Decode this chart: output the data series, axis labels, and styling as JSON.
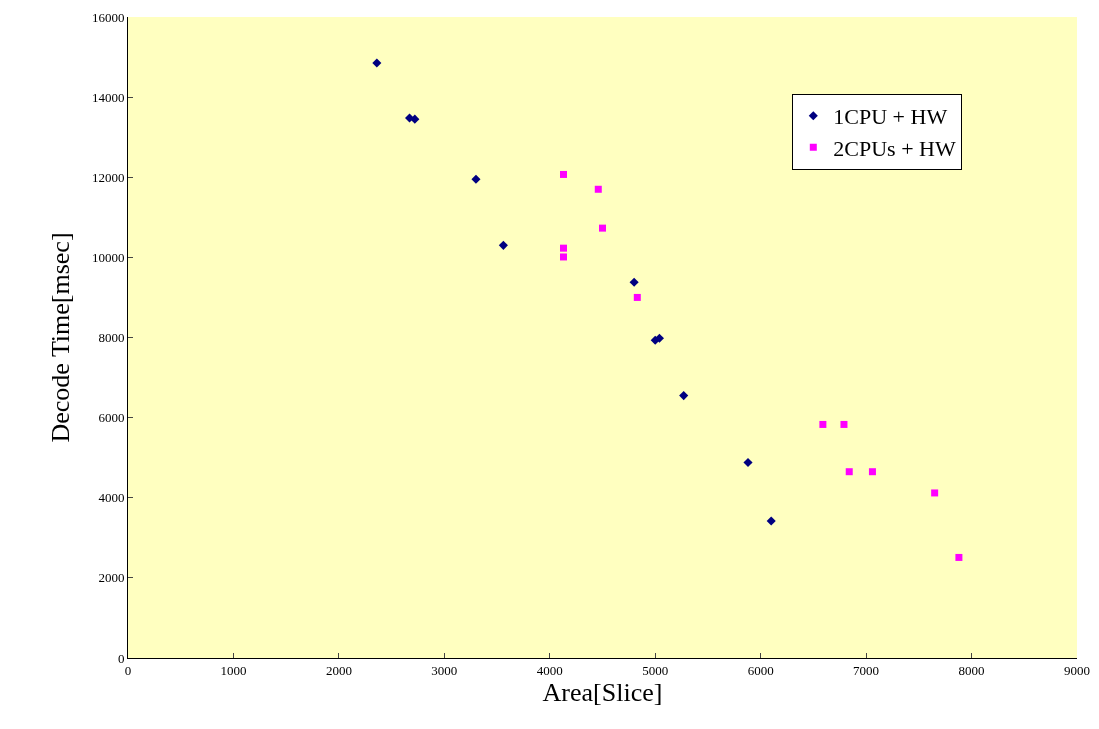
{
  "chart_data": {
    "type": "scatter",
    "xlabel": "Area[Slice]",
    "ylabel": "Decode Time[msec]",
    "xlim": [
      0,
      9000
    ],
    "xticks": [
      0,
      1000,
      2000,
      3000,
      4000,
      5000,
      6000,
      7000,
      8000,
      9000
    ],
    "ylim": [
      0,
      16000
    ],
    "yticks": [
      0,
      2000,
      4000,
      6000,
      8000,
      10000,
      12000,
      14000,
      16000
    ],
    "grid": false,
    "legend": "top right",
    "series": [
      {
        "name": "1CPU + HW",
        "color": "#000080",
        "marker": "diamond",
        "x": [
          2360,
          2670,
          2720,
          3300,
          3560,
          4800,
          5000,
          5040,
          5270,
          5880,
          6100
        ],
        "values": [
          14850,
          13480,
          13450,
          11950,
          10300,
          9380,
          7930,
          7980,
          6550,
          4880,
          3420
        ]
      },
      {
        "name": "2CPUs + HW",
        "color": "#ff00ff",
        "marker": "square",
        "x": [
          4130,
          4130,
          4130,
          4460,
          4500,
          4830,
          6590,
          6790,
          6840,
          7060,
          7650,
          7880
        ],
        "values": [
          12070,
          10230,
          10010,
          11700,
          10730,
          9000,
          5830,
          5830,
          4650,
          4650,
          4120,
          2510
        ]
      }
    ]
  }
}
